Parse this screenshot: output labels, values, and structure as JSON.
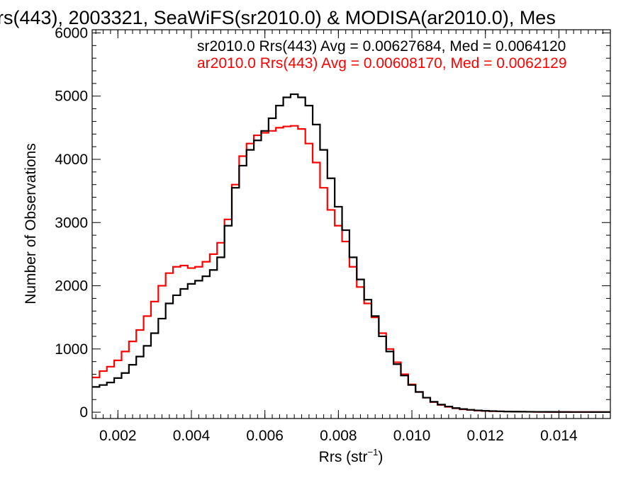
{
  "chart_data": {
    "type": "line",
    "title": "rs(443), 2003321, SeaWiFS(sr2010.0) & MODISA(ar2010.0), Mes",
    "xlabel_main": "Rrs (str",
    "xlabel_sup": "−1",
    "xlabel_close": ")",
    "ylabel": "Number of Observations",
    "xlim": [
      0.0013,
      0.0154
    ],
    "ylim": [
      -100,
      6050
    ],
    "x_ticks": [
      0.002,
      0.004,
      0.006,
      0.008,
      0.01,
      0.012,
      0.014
    ],
    "x_tick_labels": [
      "0.002",
      "0.004",
      "0.006",
      "0.008",
      "0.010",
      "0.012",
      "0.014"
    ],
    "y_ticks": [
      0,
      1000,
      2000,
      3000,
      4000,
      5000,
      6000
    ],
    "y_tick_labels": [
      "0",
      "1000",
      "2000",
      "3000",
      "4000",
      "5000",
      "6000"
    ],
    "grid": false,
    "series": [
      {
        "name": "sr2010.0",
        "color": "#000000",
        "x": [
          0.0013,
          0.0015,
          0.0017,
          0.0019,
          0.0021,
          0.0023,
          0.0025,
          0.0027,
          0.0029,
          0.0031,
          0.0033,
          0.0035,
          0.0037,
          0.0039,
          0.0041,
          0.0043,
          0.0045,
          0.0047,
          0.0049,
          0.0051,
          0.0053,
          0.0055,
          0.0057,
          0.0059,
          0.0061,
          0.0063,
          0.0065,
          0.0067,
          0.0069,
          0.0071,
          0.0073,
          0.0075,
          0.0077,
          0.0079,
          0.0081,
          0.0083,
          0.0085,
          0.0087,
          0.0089,
          0.0091,
          0.0093,
          0.0095,
          0.0097,
          0.0099,
          0.0101,
          0.0103,
          0.0105,
          0.0107,
          0.0109,
          0.0111,
          0.0113,
          0.0115,
          0.0117,
          0.0119,
          0.0121,
          0.0123,
          0.0125,
          0.0127,
          0.0129,
          0.0131,
          0.0133,
          0.0135,
          0.0137,
          0.0139,
          0.0141,
          0.0143,
          0.0145,
          0.0147,
          0.0149,
          0.0151,
          0.0153
        ],
        "y": [
          400,
          430,
          470,
          540,
          620,
          750,
          880,
          1050,
          1250,
          1480,
          1720,
          1850,
          1950,
          2030,
          2080,
          2150,
          2250,
          2450,
          2950,
          3550,
          3900,
          4150,
          4300,
          4450,
          4650,
          4850,
          4980,
          5030,
          4980,
          4850,
          4550,
          4150,
          3700,
          3250,
          2880,
          2450,
          2100,
          1780,
          1520,
          1200,
          960,
          760,
          580,
          430,
          320,
          230,
          165,
          120,
          90,
          65,
          50,
          38,
          28,
          22,
          18,
          14,
          11,
          9,
          8,
          7,
          6,
          5,
          5,
          4,
          4,
          3,
          3,
          3,
          2,
          2,
          2
        ]
      },
      {
        "name": "ar2010.0",
        "color": "#ff0000",
        "x": [
          0.0013,
          0.0015,
          0.0017,
          0.0019,
          0.0021,
          0.0023,
          0.0025,
          0.0027,
          0.0029,
          0.0031,
          0.0033,
          0.0035,
          0.0037,
          0.0039,
          0.0041,
          0.0043,
          0.0045,
          0.0047,
          0.0049,
          0.0051,
          0.0053,
          0.0055,
          0.0057,
          0.0059,
          0.0061,
          0.0063,
          0.0065,
          0.0067,
          0.0069,
          0.0071,
          0.0073,
          0.0075,
          0.0077,
          0.0079,
          0.0081,
          0.0083,
          0.0085,
          0.0087,
          0.0089,
          0.0091,
          0.0093,
          0.0095,
          0.0097,
          0.0099,
          0.0101,
          0.0103,
          0.0105,
          0.0107,
          0.0109,
          0.0111,
          0.0113,
          0.0115,
          0.0117,
          0.0119,
          0.0121,
          0.0123,
          0.0125,
          0.0127,
          0.0129,
          0.0131,
          0.0133,
          0.0135,
          0.0137,
          0.0139,
          0.0141,
          0.0143,
          0.0145,
          0.0147,
          0.0149,
          0.0151,
          0.0153
        ],
        "y": [
          550,
          650,
          720,
          820,
          960,
          1120,
          1300,
          1520,
          1750,
          2000,
          2200,
          2300,
          2320,
          2280,
          2300,
          2380,
          2500,
          2680,
          3050,
          3600,
          4050,
          4250,
          4380,
          4420,
          4450,
          4500,
          4520,
          4530,
          4480,
          4250,
          3950,
          3550,
          3200,
          2950,
          2700,
          2300,
          1980,
          1720,
          1500,
          1250,
          1000,
          790,
          600,
          440,
          320,
          230,
          160,
          115,
          85,
          62,
          46,
          35,
          26,
          20,
          16,
          13,
          10,
          8,
          7,
          6,
          5,
          5,
          4,
          4,
          3,
          3,
          3,
          2,
          2,
          2,
          2
        ]
      }
    ],
    "annotations": [
      {
        "text": "sr2010.0 Rrs(443) Avg = 0.00627684, Med = 0.0064120",
        "color": "#000000"
      },
      {
        "text": "ar2010.0 Rrs(443) Avg = 0.00608170, Med = 0.0062129",
        "color": "#ff0000"
      }
    ]
  }
}
